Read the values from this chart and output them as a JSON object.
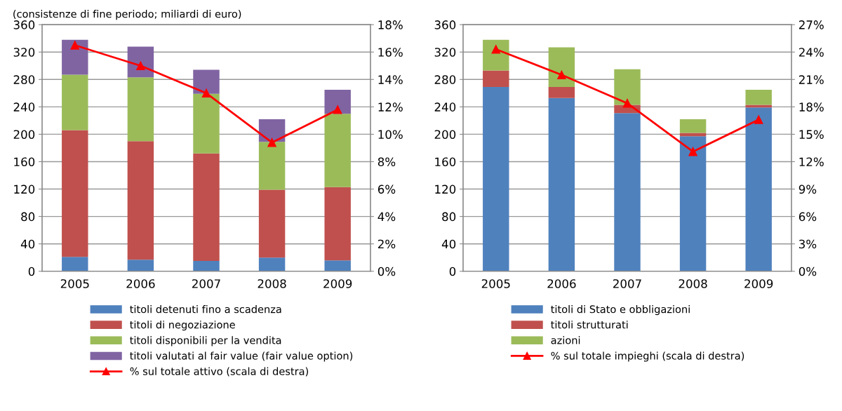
{
  "chart_data": [
    {
      "type": "bar",
      "title": "(consistenze di fine periodo; miliardi di euro)",
      "stacked": true,
      "categories": [
        "2005",
        "2006",
        "2007",
        "2008",
        "2009"
      ],
      "series": [
        {
          "name": "titoli detenuti fino a scadenza",
          "color": "#4f81bd",
          "values": [
            21,
            17,
            15,
            20,
            16
          ]
        },
        {
          "name": "titoli di negoziazione",
          "color": "#c0504d",
          "values": [
            185,
            173,
            157,
            99,
            107
          ]
        },
        {
          "name": "titoli disponibili per la vendita",
          "color": "#9bbb59",
          "values": [
            81,
            93,
            87,
            70,
            107
          ]
        },
        {
          "name": "titoli valutati al fair value (fair value option)",
          "color": "#8064a2",
          "values": [
            51,
            45,
            35,
            33,
            35
          ]
        },
        {
          "name": "% sul totale attivo (scala di destra)",
          "type": "line",
          "axis": "y2",
          "color": "#ff0000",
          "marker": "triangle",
          "values": [
            16.5,
            15.0,
            13.0,
            9.4,
            11.8
          ]
        }
      ],
      "ylim": [
        0,
        360
      ],
      "yticks": [
        0,
        40,
        80,
        120,
        160,
        200,
        240,
        280,
        320,
        360
      ],
      "y2lim": [
        0,
        18
      ],
      "y2ticks": [
        {
          "value": 0,
          "label": "0%"
        },
        {
          "value": 2,
          "label": "2%"
        },
        {
          "value": 4,
          "label": "4%"
        },
        {
          "value": 6,
          "label": "6%"
        },
        {
          "value": 8,
          "label": "8%"
        },
        {
          "value": 10,
          "label": "10%"
        },
        {
          "value": 12,
          "label": "12%"
        },
        {
          "value": 14,
          "label": "14%"
        },
        {
          "value": 16,
          "label": "16%"
        },
        {
          "value": 18,
          "label": "18%"
        }
      ],
      "grid": "y",
      "legend": "bottom"
    },
    {
      "type": "bar",
      "stacked": true,
      "categories": [
        "2005",
        "2006",
        "2007",
        "2008",
        "2009"
      ],
      "series": [
        {
          "name": "titoli di Stato e obbligazioni",
          "color": "#4f81bd",
          "values": [
            269,
            253,
            231,
            197,
            239
          ]
        },
        {
          "name": "titoli strutturati",
          "color": "#c0504d",
          "values": [
            24,
            16,
            12,
            5,
            4
          ]
        },
        {
          "name": "azioni",
          "color": "#9bbb59",
          "values": [
            45,
            58,
            52,
            20,
            22
          ]
        },
        {
          "name": "% sul totale impieghi (scala di destra)",
          "type": "line",
          "axis": "y2",
          "color": "#ff0000",
          "marker": "triangle",
          "values": [
            24.3,
            21.5,
            18.4,
            13.1,
            16.6
          ]
        }
      ],
      "ylim": [
        0,
        360
      ],
      "yticks": [
        0,
        40,
        80,
        120,
        160,
        200,
        240,
        280,
        320,
        360
      ],
      "y2lim": [
        0,
        27
      ],
      "y2ticks": [
        {
          "value": 0,
          "label": "0%"
        },
        {
          "value": 3,
          "label": "3%"
        },
        {
          "value": 6,
          "label": "6%"
        },
        {
          "value": 9,
          "label": "9%"
        },
        {
          "value": 12,
          "label": "12%"
        },
        {
          "value": 15,
          "label": "15%"
        },
        {
          "value": 18,
          "label": "18%"
        },
        {
          "value": 21,
          "label": "21%"
        },
        {
          "value": 24,
          "label": "24%"
        },
        {
          "value": 27,
          "label": "27%"
        }
      ],
      "grid": "y",
      "legend": "bottom"
    }
  ]
}
